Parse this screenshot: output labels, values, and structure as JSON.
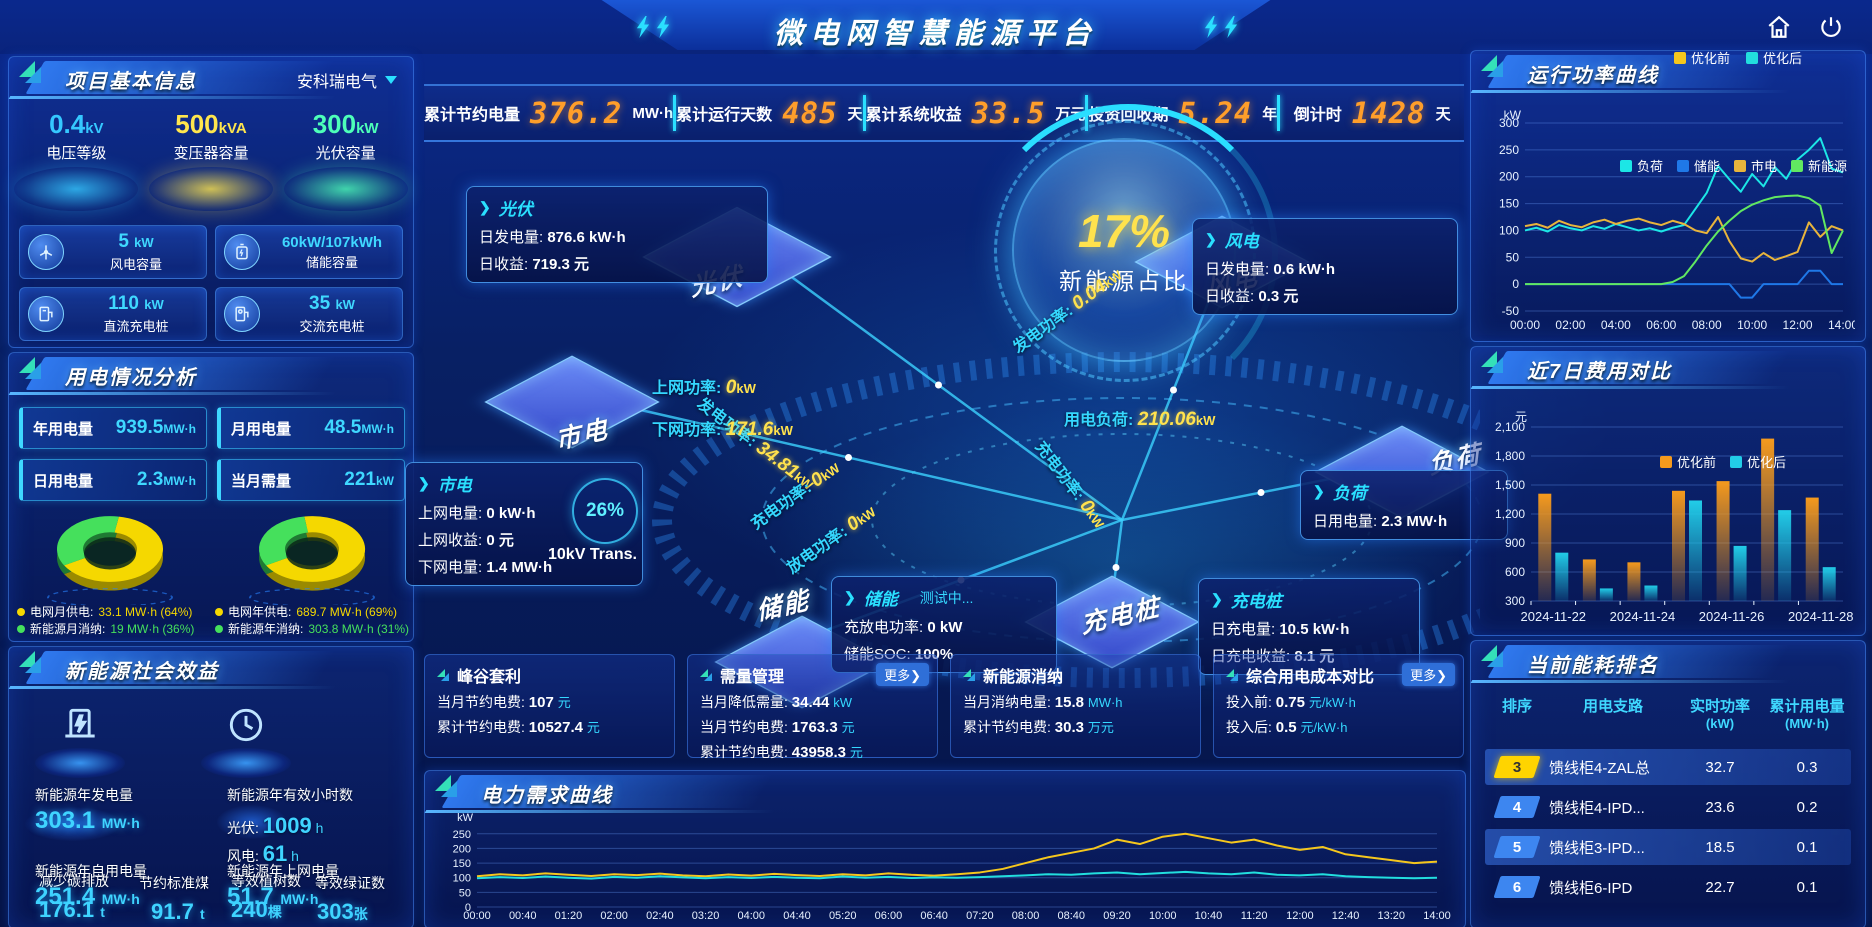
{
  "header": {
    "title": "微电网智慧能源平台"
  },
  "stats_bar": [
    {
      "label": "累计节约电量",
      "value": "376.2",
      "unit": "MW·h"
    },
    {
      "label": "累计运行天数",
      "value": "485",
      "unit": "天"
    },
    {
      "label": "累计系统收益",
      "value": "33.5",
      "unit": "万元"
    },
    {
      "label": "投资回收期",
      "value": "5.24",
      "unit": "年"
    },
    {
      "label": "倒计时",
      "value": "1428",
      "unit": "天"
    }
  ],
  "left": {
    "project": {
      "title": "项目基本信息",
      "company": "安科瑞电气",
      "pedestals": [
        {
          "value": "0.4",
          "unit": "kV",
          "label": "电压等级",
          "color": "#35c8ff"
        },
        {
          "value": "500",
          "unit": "kVA",
          "label": "变压器容量",
          "color": "#ffe64d"
        },
        {
          "value": "300",
          "unit": "kW",
          "label": "光伏容量",
          "color": "#4dffb8"
        }
      ],
      "boxes": [
        {
          "icon": "wind-turbine-icon",
          "value": "5",
          "unit": "kW",
          "label": "风电容量"
        },
        {
          "icon": "battery-icon",
          "value": "60kW/107kWh",
          "unit": "",
          "label": "储能容量"
        },
        {
          "icon": "dc-charger-icon",
          "value": "110",
          "unit": "kW",
          "label": "直流充电桩"
        },
        {
          "icon": "ac-charger-icon",
          "value": "35",
          "unit": "kW",
          "label": "交流充电桩"
        }
      ]
    },
    "usage": {
      "title": "用电情况分析",
      "stats": [
        {
          "label": "年用电量",
          "value": "939.5",
          "unit": "MW·h"
        },
        {
          "label": "月用电量",
          "value": "48.5",
          "unit": "MW·h"
        },
        {
          "label": "日用电量",
          "value": "2.3",
          "unit": "MW·h"
        },
        {
          "label": "当月需量",
          "value": "221",
          "unit": "kW"
        }
      ]
    },
    "benefits": {
      "title": "新能源社会效益",
      "gen_label": "新能源年发电量",
      "gen_value": "303.1",
      "gen_unit": "MW·h",
      "hours_label": "新能源年有效小时数",
      "pv_label": "光伏:",
      "pv_value": "1009",
      "pv_unit": "h",
      "wind_label": "风电:",
      "wind_value": "61",
      "wind_unit": "h",
      "self_label": "新能源年自用电量",
      "self_value": "251.4",
      "self_unit": "MW·h",
      "togrid_label": "新能源年上网电量",
      "togrid_value": "51.7",
      "togrid_unit": "MW·h",
      "co2_label": "减少碳排放",
      "co2_value": "176.1",
      "co2_unit": "t",
      "coal_label": "节约标准煤",
      "coal_value": "91.7",
      "coal_unit": "t",
      "trees_label": "等效植树数",
      "trees_value": "240",
      "trees_unit": "棵",
      "certs_label": "等效绿证数",
      "certs_value": "303",
      "certs_unit": "张"
    }
  },
  "center": {
    "core": {
      "value": "17%",
      "label": "新能源占比"
    },
    "transformer": {
      "pct": "26%",
      "label": "10kV Trans."
    },
    "nodes": [
      {
        "id": "pv",
        "label": "光伏"
      },
      {
        "id": "wind",
        "label": "风电"
      },
      {
        "id": "grid",
        "label": "市电"
      },
      {
        "id": "storage",
        "label": "储能"
      },
      {
        "id": "ev",
        "label": "充电桩"
      },
      {
        "id": "load",
        "label": "负荷"
      }
    ],
    "flows": [
      {
        "id": "pv",
        "label": "发电功率:",
        "value": "34.81",
        "unit": "kW"
      },
      {
        "id": "grid_up",
        "label": "上网功率:",
        "value": "0",
        "unit": "kW"
      },
      {
        "id": "grid_down",
        "label": "下网功率:",
        "value": "171.6",
        "unit": "kW"
      },
      {
        "id": "wind",
        "label": "发电功率:",
        "value": "0.04",
        "unit": "kW"
      },
      {
        "id": "load",
        "label": "用电负荷:",
        "value": "210.06",
        "unit": "kW"
      },
      {
        "id": "st_charge",
        "label": "充电功率:",
        "value": "0",
        "unit": "kW"
      },
      {
        "id": "st_discharge",
        "label": "放电功率:",
        "value": "0",
        "unit": "kW"
      },
      {
        "id": "ev",
        "label": "充电功率:",
        "value": "0",
        "unit": "kW"
      }
    ],
    "cards": [
      {
        "id": "pv",
        "title": "光伏",
        "badge": "",
        "rows": [
          {
            "label": "日发电量:",
            "value": "876.6 kW·h"
          },
          {
            "label": "日收益:",
            "value": "719.3 元"
          }
        ]
      },
      {
        "id": "wind",
        "title": "风电",
        "badge": "",
        "rows": [
          {
            "label": "日发电量:",
            "value": "0.6 kW·h"
          },
          {
            "label": "日收益:",
            "value": "0.3 元"
          }
        ]
      },
      {
        "id": "grid",
        "title": "市电",
        "badge": "",
        "rows": [
          {
            "label": "上网电量:",
            "value": "0 kW·h"
          },
          {
            "label": "上网收益:",
            "value": "0 元"
          },
          {
            "label": "下网电量:",
            "value": "1.4 MW·h"
          }
        ]
      },
      {
        "id": "storage",
        "title": "储能",
        "badge": "测试中...",
        "rows": [
          {
            "label": "充放电功率:",
            "value": "0 kW"
          },
          {
            "label": "储能SOC:",
            "value": "100%"
          }
        ]
      },
      {
        "id": "ev",
        "title": "充电桩",
        "badge": "",
        "rows": [
          {
            "label": "日充电量:",
            "value": "10.5 kW·h"
          },
          {
            "label": "日充电收益:",
            "value": "8.1 元"
          }
        ]
      },
      {
        "id": "load",
        "title": "负荷",
        "badge": "",
        "rows": [
          {
            "label": "日用电量:",
            "value": "2.3 MW·h"
          }
        ]
      }
    ]
  },
  "bottom_cards": [
    {
      "title": "峰谷套利",
      "more": false,
      "rows": [
        {
          "label": "当月节约电费:",
          "value": "107",
          "unit": "元"
        },
        {
          "label": "累计节约电费:",
          "value": "10527.4",
          "unit": "元"
        }
      ]
    },
    {
      "title": "需量管理",
      "more": true,
      "rows": [
        {
          "label": "当月降低需量:",
          "value": "34.44",
          "unit": "kW"
        },
        {
          "label": "当月节约电费:",
          "value": "1763.3",
          "unit": "元"
        },
        {
          "label": "累计节约电费:",
          "value": "43958.3",
          "unit": "元"
        }
      ]
    },
    {
      "title": "新能源消纳",
      "more": false,
      "rows": [
        {
          "label": "当月消纳电量:",
          "value": "15.8",
          "unit": "MW·h"
        },
        {
          "label": "累计节约电费:",
          "value": "30.3",
          "unit": "万元"
        }
      ]
    },
    {
      "title": "综合用电成本对比",
      "more": true,
      "rows": [
        {
          "label": "投入前:",
          "value": "0.75",
          "unit": "元/kW·h"
        },
        {
          "label": "投入后:",
          "value": "0.5",
          "unit": "元/kW·h"
        }
      ]
    }
  ],
  "panels": {
    "power_title": "运行功率曲线",
    "cost_title": "近7日费用对比",
    "rank_title": "当前能耗排名",
    "demand_title": "电力需求曲线"
  },
  "rank_table": {
    "headers": [
      {
        "line1": "排序",
        "line2": ""
      },
      {
        "line1": "用电支路",
        "line2": ""
      },
      {
        "line1": "实时功率",
        "line2": "(kW)"
      },
      {
        "line1": "累计用电量",
        "line2": "(MW·h)"
      }
    ],
    "rows": [
      {
        "rank": "3",
        "branch": "馈线柜4-ZAL总",
        "power": "32.7",
        "energy": "0.3",
        "badge": "gold",
        "hl": true
      },
      {
        "rank": "4",
        "branch": "馈线柜4-IPD...",
        "power": "23.6",
        "energy": "0.2",
        "badge": "blue",
        "hl": false
      },
      {
        "rank": "5",
        "branch": "馈线柜3-IPD...",
        "power": "18.5",
        "energy": "0.1",
        "badge": "blue",
        "hl": true
      },
      {
        "rank": "6",
        "branch": "馈线柜6-IPD",
        "power": "22.7",
        "energy": "0.1",
        "badge": "blue",
        "hl": false
      }
    ]
  },
  "chart_data": [
    {
      "id": "power_curve",
      "type": "line",
      "title": "运行功率曲线",
      "ylabel": "kW",
      "ylim": [
        -50,
        300
      ],
      "yticks": [
        -50,
        0,
        50,
        100,
        150,
        200,
        250,
        300
      ],
      "xtick_labels": [
        "00:00",
        "02:00",
        "04:00",
        "06:00",
        "08:00",
        "10:00",
        "12:00",
        "14:00"
      ],
      "legend_position": "top",
      "series": [
        {
          "name": "负荷",
          "color": "#1ce6e6",
          "values": [
            100,
            105,
            98,
            110,
            104,
            100,
            108,
            103,
            112,
            106,
            100,
            104,
            98,
            105,
            110,
            140,
            170,
            220,
            195,
            172,
            205,
            182,
            218,
            196,
            232,
            250,
            272,
            215,
            208
          ]
        },
        {
          "name": "储能",
          "color": "#1f78e8",
          "values": [
            0,
            0,
            0,
            0,
            0,
            0,
            0,
            0,
            0,
            0,
            0,
            0,
            0,
            0,
            0,
            0,
            0,
            0,
            0,
            -25,
            -25,
            0,
            0,
            0,
            0,
            25,
            25,
            0,
            0
          ]
        },
        {
          "name": "市电",
          "color": "#e8b43c",
          "values": [
            108,
            112,
            105,
            118,
            110,
            106,
            115,
            120,
            112,
            118,
            122,
            115,
            110,
            118,
            112,
            100,
            95,
            125,
            80,
            48,
            42,
            58,
            45,
            52,
            60,
            115,
            88,
            108,
            100
          ]
        },
        {
          "name": "新能源",
          "color": "#61e861",
          "values": [
            0,
            0,
            0,
            0,
            0,
            0,
            0,
            0,
            0,
            0,
            0,
            0,
            0,
            4,
            15,
            42,
            72,
            98,
            118,
            136,
            148,
            156,
            162,
            164,
            165,
            160,
            146,
            58,
            100
          ]
        }
      ]
    },
    {
      "id": "cost_compare",
      "type": "bar",
      "title": "近7日费用对比",
      "ylabel": "元",
      "ylim": [
        300,
        2100
      ],
      "yticks": [
        300,
        600,
        900,
        1200,
        1500,
        1800,
        2100
      ],
      "categories": [
        "2024-11-22",
        "2024-11-23",
        "2024-11-24",
        "2024-11-25",
        "2024-11-26",
        "2024-11-27",
        "2024-11-28"
      ],
      "xtick_labels": [
        "2024-11-22",
        "",
        "2024-11-24",
        "",
        "2024-11-26",
        "",
        "2024-11-28"
      ],
      "legend_position": "top-right",
      "series": [
        {
          "name": "优化前",
          "color": "#f59a1d",
          "values": [
            1410,
            730,
            700,
            1440,
            1540,
            1980,
            1370
          ]
        },
        {
          "name": "优化后",
          "color": "#22cde8",
          "values": [
            800,
            430,
            460,
            1340,
            870,
            1240,
            650
          ]
        }
      ]
    },
    {
      "id": "demand_curve",
      "type": "line",
      "title": "电力需求曲线",
      "ylabel": "kW",
      "ylim": [
        0,
        280
      ],
      "yticks": [
        0,
        50,
        100,
        150,
        200,
        250
      ],
      "xtick_labels": [
        "00:00",
        "00:40",
        "01:20",
        "02:00",
        "02:40",
        "03:20",
        "04:00",
        "04:40",
        "05:20",
        "06:00",
        "06:40",
        "07:20",
        "08:00",
        "08:40",
        "09:20",
        "10:00",
        "10:40",
        "11:20",
        "12:00",
        "12:40",
        "13:20",
        "14:00"
      ],
      "legend_position": "top-right",
      "series": [
        {
          "name": "优化前",
          "color": "#f5c71d",
          "values": [
            105,
            112,
            108,
            115,
            110,
            106,
            112,
            109,
            114,
            108,
            105,
            111,
            107,
            113,
            109,
            106,
            112,
            108,
            115,
            110,
            107,
            112,
            118,
            130,
            150,
            170,
            185,
            200,
            230,
            215,
            240,
            250,
            235,
            220,
            230,
            210,
            195,
            205,
            180,
            170,
            160,
            150,
            155
          ]
        },
        {
          "name": "优化后",
          "color": "#22dede",
          "values": [
            98,
            102,
            99,
            104,
            100,
            97,
            103,
            100,
            105,
            101,
            98,
            102,
            99,
            103,
            100,
            98,
            104,
            100,
            103,
            99,
            101,
            100,
            102,
            105,
            108,
            112,
            110,
            115,
            118,
            112,
            116,
            120,
            115,
            112,
            118,
            110,
            108,
            112,
            105,
            102,
            100,
            98,
            100
          ]
        }
      ]
    },
    {
      "id": "month_mix",
      "type": "pie",
      "slices": [
        {
          "label": "电网月供电:",
          "value_text": "33.1 MW·h (64%)",
          "pct": 64,
          "color": "#f5d800",
          "dark": "#9a8a00"
        },
        {
          "label": "新能源月消纳:",
          "value_text": "19 MW·h (36%)",
          "pct": 36,
          "color": "#45e05c",
          "dark": "#1f7a33"
        }
      ]
    },
    {
      "id": "year_mix",
      "type": "pie",
      "slices": [
        {
          "label": "电网年供电:",
          "value_text": "689.7 MW·h (69%)",
          "pct": 69,
          "color": "#f5d800",
          "dark": "#9a8a00"
        },
        {
          "label": "新能源年消纳:",
          "value_text": "303.8 MW·h (31%)",
          "pct": 31,
          "color": "#45e05c",
          "dark": "#1f7a33"
        }
      ]
    }
  ]
}
